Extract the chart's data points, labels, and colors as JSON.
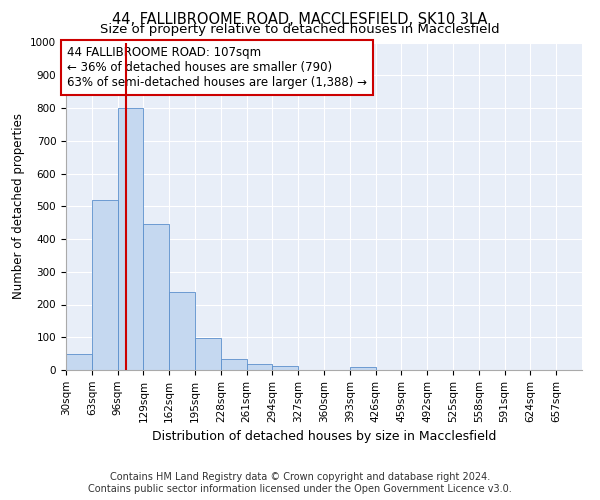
{
  "title1": "44, FALLIBROOME ROAD, MACCLESFIELD, SK10 3LA",
  "title2": "Size of property relative to detached houses in Macclesfield",
  "xlabel": "Distribution of detached houses by size in Macclesfield",
  "ylabel": "Number of detached properties",
  "footnote1": "Contains HM Land Registry data © Crown copyright and database right 2024.",
  "footnote2": "Contains public sector information licensed under the Open Government Licence v3.0.",
  "bin_edges": [
    30,
    63,
    96,
    129,
    162,
    195,
    228,
    261,
    294,
    327,
    360,
    393,
    426,
    459,
    492,
    525,
    558,
    591,
    624,
    657,
    690
  ],
  "bar_heights": [
    50,
    520,
    800,
    445,
    238,
    97,
    35,
    18,
    12,
    0,
    0,
    8,
    0,
    0,
    0,
    0,
    0,
    0,
    0,
    0
  ],
  "bar_color": "#c5d8f0",
  "bar_edge_color": "#5b8fcc",
  "vline_x": 107,
  "vline_color": "#cc0000",
  "annotation_line1": "44 FALLIBROOME ROAD: 107sqm",
  "annotation_line2": "← 36% of detached houses are smaller (790)",
  "annotation_line3": "63% of semi-detached houses are larger (1,388) →",
  "annotation_box_color": "#ffffff",
  "annotation_box_edgecolor": "#cc0000",
  "ylim": [
    0,
    1000
  ],
  "xlim": [
    30,
    690
  ],
  "yticks": [
    0,
    100,
    200,
    300,
    400,
    500,
    600,
    700,
    800,
    900,
    1000
  ],
  "background_color": "#e8eef8",
  "title1_fontsize": 10.5,
  "title2_fontsize": 9.5,
  "xlabel_fontsize": 9,
  "ylabel_fontsize": 8.5,
  "tick_fontsize": 7.5,
  "annotation_fontsize": 8.5,
  "footnote_fontsize": 7
}
